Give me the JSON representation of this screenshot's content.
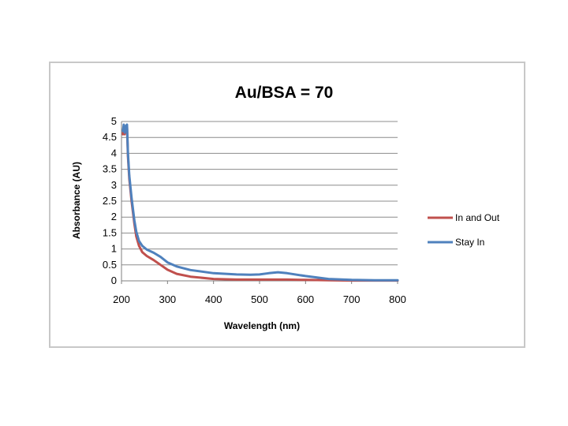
{
  "chart_data": {
    "type": "line",
    "title": "Au/BSA = 70",
    "xlabel": "Wavelength (nm)",
    "ylabel": "Absorbance (AU)",
    "xlim": [
      200,
      800
    ],
    "ylim": [
      0,
      5
    ],
    "xticks": [
      200,
      300,
      400,
      500,
      600,
      700,
      800
    ],
    "yticks": [
      0,
      0.5,
      1,
      1.5,
      2,
      2.5,
      3,
      3.5,
      4,
      4.5,
      5
    ],
    "ytick_labels": [
      "0",
      "0.5",
      "1",
      "1.5",
      "2",
      "2.5",
      "3",
      "3.5",
      "4",
      "4.5",
      "5"
    ],
    "grid": "horizontal",
    "legend_position": "right",
    "series": [
      {
        "name": "In and Out",
        "color": "#c0504d",
        "points": [
          [
            203,
            4.6
          ],
          [
            205,
            4.85
          ],
          [
            207,
            4.6
          ],
          [
            209,
            4.8
          ],
          [
            212,
            4.85
          ],
          [
            214,
            3.9
          ],
          [
            217,
            3.2
          ],
          [
            222,
            2.5
          ],
          [
            228,
            1.8
          ],
          [
            232,
            1.4
          ],
          [
            238,
            1.1
          ],
          [
            245,
            0.9
          ],
          [
            255,
            0.78
          ],
          [
            270,
            0.65
          ],
          [
            285,
            0.5
          ],
          [
            300,
            0.35
          ],
          [
            320,
            0.22
          ],
          [
            350,
            0.13
          ],
          [
            400,
            0.06
          ],
          [
            450,
            0.04
          ],
          [
            500,
            0.04
          ],
          [
            530,
            0.04
          ],
          [
            560,
            0.04
          ],
          [
            600,
            0.03
          ],
          [
            650,
            0.02
          ],
          [
            700,
            0.01
          ],
          [
            750,
            0.01
          ],
          [
            800,
            0.01
          ]
        ]
      },
      {
        "name": "Stay In",
        "color": "#4f81bd",
        "points": [
          [
            203,
            4.7
          ],
          [
            205,
            4.9
          ],
          [
            207,
            4.65
          ],
          [
            209,
            4.85
          ],
          [
            212,
            4.9
          ],
          [
            214,
            4.0
          ],
          [
            217,
            3.3
          ],
          [
            222,
            2.6
          ],
          [
            228,
            1.9
          ],
          [
            232,
            1.55
          ],
          [
            238,
            1.25
          ],
          [
            245,
            1.1
          ],
          [
            255,
            0.98
          ],
          [
            270,
            0.88
          ],
          [
            285,
            0.75
          ],
          [
            300,
            0.58
          ],
          [
            320,
            0.45
          ],
          [
            350,
            0.34
          ],
          [
            400,
            0.24
          ],
          [
            450,
            0.2
          ],
          [
            480,
            0.19
          ],
          [
            500,
            0.2
          ],
          [
            520,
            0.24
          ],
          [
            540,
            0.27
          ],
          [
            560,
            0.24
          ],
          [
            600,
            0.15
          ],
          [
            650,
            0.06
          ],
          [
            700,
            0.03
          ],
          [
            750,
            0.02
          ],
          [
            800,
            0.02
          ]
        ]
      }
    ]
  }
}
